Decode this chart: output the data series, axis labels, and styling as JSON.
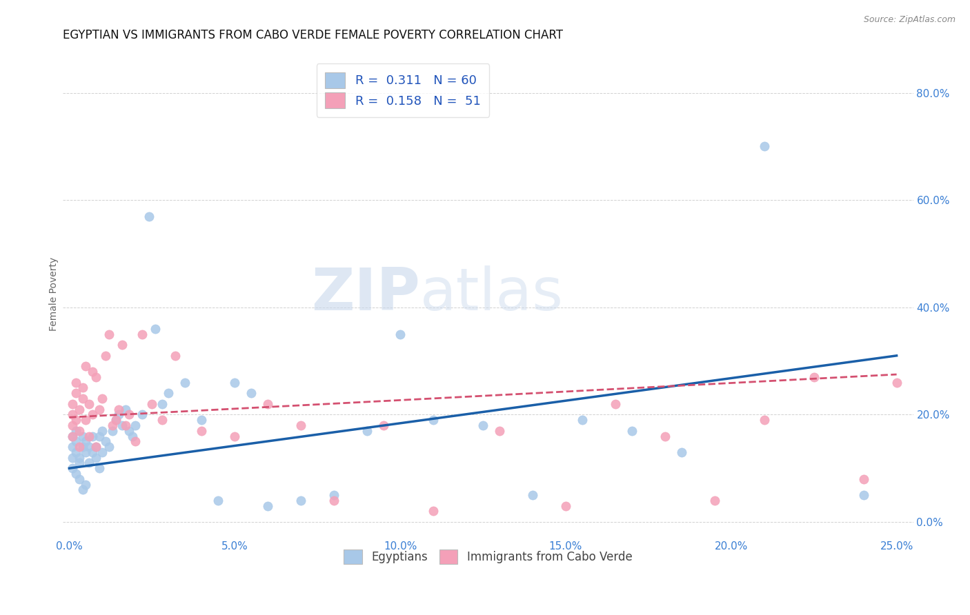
{
  "title": "EGYPTIAN VS IMMIGRANTS FROM CABO VERDE FEMALE POVERTY CORRELATION CHART",
  "source": "Source: ZipAtlas.com",
  "ylabel": "Female Poverty",
  "xlabel_ticks": [
    "0.0%",
    "5.0%",
    "10.0%",
    "15.0%",
    "20.0%",
    "25.0%"
  ],
  "xlabel_vals": [
    0.0,
    0.05,
    0.1,
    0.15,
    0.2,
    0.25
  ],
  "ylabel_ticks": [
    "0.0%",
    "20.0%",
    "40.0%",
    "60.0%",
    "80.0%"
  ],
  "ylabel_vals": [
    0.0,
    0.2,
    0.4,
    0.6,
    0.8
  ],
  "xlim": [
    -0.002,
    0.255
  ],
  "ylim": [
    -0.03,
    0.88
  ],
  "color_blue": "#a8c8e8",
  "color_pink": "#f4a0b8",
  "trendline_blue": "#1a5fa8",
  "trendline_pink": "#d45070",
  "watermark_zip": "ZIP",
  "watermark_atlas": "atlas",
  "background_color": "#ffffff",
  "grid_color": "#cccccc",
  "title_fontsize": 12,
  "axis_label_fontsize": 10,
  "tick_fontsize": 11,
  "egyptians_x": [
    0.001,
    0.001,
    0.001,
    0.001,
    0.002,
    0.002,
    0.002,
    0.002,
    0.003,
    0.003,
    0.003,
    0.004,
    0.004,
    0.004,
    0.005,
    0.005,
    0.005,
    0.006,
    0.006,
    0.007,
    0.007,
    0.008,
    0.008,
    0.009,
    0.009,
    0.01,
    0.01,
    0.011,
    0.012,
    0.013,
    0.014,
    0.015,
    0.016,
    0.017,
    0.018,
    0.019,
    0.02,
    0.022,
    0.024,
    0.026,
    0.028,
    0.03,
    0.035,
    0.04,
    0.045,
    0.05,
    0.055,
    0.06,
    0.07,
    0.08,
    0.09,
    0.1,
    0.11,
    0.125,
    0.14,
    0.155,
    0.17,
    0.185,
    0.21,
    0.24
  ],
  "egyptians_y": [
    0.12,
    0.14,
    0.16,
    0.1,
    0.13,
    0.15,
    0.09,
    0.17,
    0.12,
    0.11,
    0.08,
    0.14,
    0.16,
    0.06,
    0.13,
    0.07,
    0.15,
    0.14,
    0.11,
    0.13,
    0.16,
    0.12,
    0.14,
    0.1,
    0.16,
    0.13,
    0.17,
    0.15,
    0.14,
    0.17,
    0.19,
    0.2,
    0.18,
    0.21,
    0.17,
    0.16,
    0.18,
    0.2,
    0.57,
    0.36,
    0.22,
    0.24,
    0.26,
    0.19,
    0.04,
    0.26,
    0.24,
    0.03,
    0.04,
    0.05,
    0.17,
    0.35,
    0.19,
    0.18,
    0.05,
    0.19,
    0.17,
    0.13,
    0.7,
    0.05
  ],
  "caboverde_x": [
    0.001,
    0.001,
    0.001,
    0.001,
    0.002,
    0.002,
    0.002,
    0.003,
    0.003,
    0.003,
    0.004,
    0.004,
    0.005,
    0.005,
    0.006,
    0.006,
    0.007,
    0.007,
    0.008,
    0.008,
    0.009,
    0.01,
    0.011,
    0.012,
    0.013,
    0.014,
    0.015,
    0.016,
    0.017,
    0.018,
    0.02,
    0.022,
    0.025,
    0.028,
    0.032,
    0.04,
    0.05,
    0.06,
    0.07,
    0.08,
    0.095,
    0.11,
    0.13,
    0.15,
    0.165,
    0.18,
    0.195,
    0.21,
    0.225,
    0.24,
    0.25
  ],
  "caboverde_y": [
    0.18,
    0.2,
    0.22,
    0.16,
    0.24,
    0.19,
    0.26,
    0.14,
    0.21,
    0.17,
    0.25,
    0.23,
    0.19,
    0.29,
    0.22,
    0.16,
    0.28,
    0.2,
    0.27,
    0.14,
    0.21,
    0.23,
    0.31,
    0.35,
    0.18,
    0.19,
    0.21,
    0.33,
    0.18,
    0.2,
    0.15,
    0.35,
    0.22,
    0.19,
    0.31,
    0.17,
    0.16,
    0.22,
    0.18,
    0.04,
    0.18,
    0.02,
    0.17,
    0.03,
    0.22,
    0.16,
    0.04,
    0.19,
    0.27,
    0.08,
    0.26
  ]
}
